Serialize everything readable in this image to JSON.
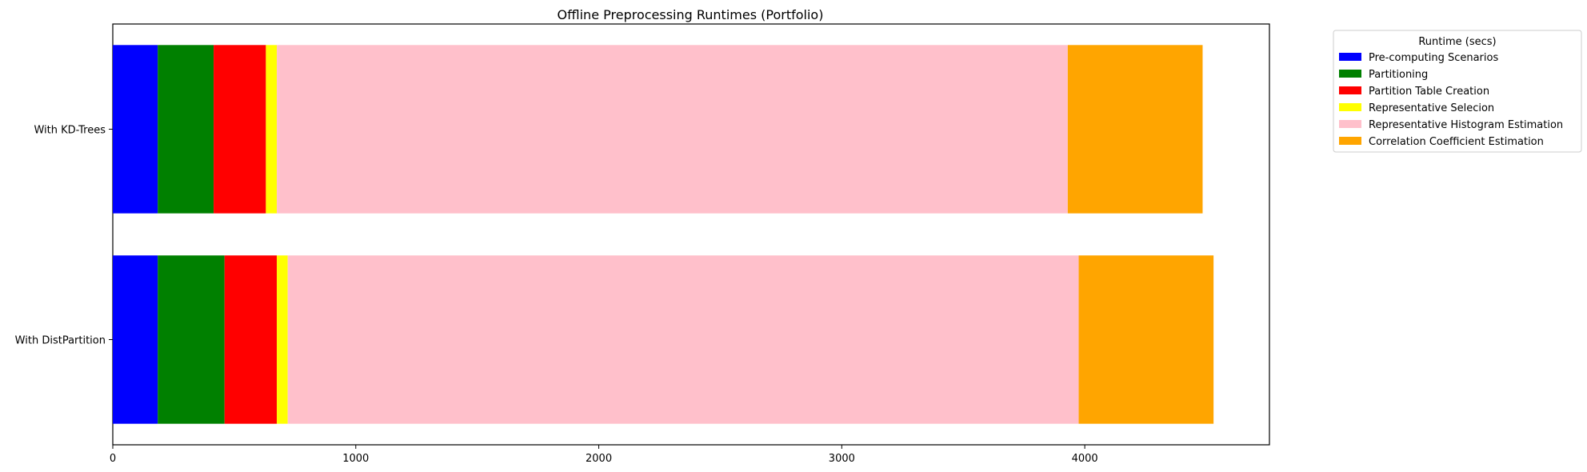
{
  "chart_data": {
    "type": "bar",
    "orientation": "horizontal",
    "stacked": true,
    "title": "Offline Preprocessing Runtimes (Portfolio)",
    "xlabel": "",
    "ylabel": "",
    "xlim": [
      0,
      4760
    ],
    "xticks": [
      0,
      1000,
      2000,
      3000,
      4000
    ],
    "grid": false,
    "legend": {
      "title": "Runtime (secs)",
      "placement": "outside-top-right"
    },
    "categories": [
      "With KD-Trees",
      "With DistPartition"
    ],
    "series": [
      {
        "name": "Pre-computing Scenarios",
        "color": "#0000ff",
        "values": [
          185,
          185
        ]
      },
      {
        "name": "Partitioning",
        "color": "#008000",
        "values": [
          230,
          275
        ]
      },
      {
        "name": "Partition Table Creation",
        "color": "#ff0000",
        "values": [
          215,
          215
        ]
      },
      {
        "name": "Representative Selecion",
        "color": "#ffff00",
        "values": [
          45,
          45
        ]
      },
      {
        "name": "Representative Histogram Estimation",
        "color": "#ffc0cb",
        "values": [
          3255,
          3255
        ]
      },
      {
        "name": "Correlation Coefficient Estimation",
        "color": "#ffa500",
        "values": [
          555,
          555
        ]
      }
    ]
  }
}
